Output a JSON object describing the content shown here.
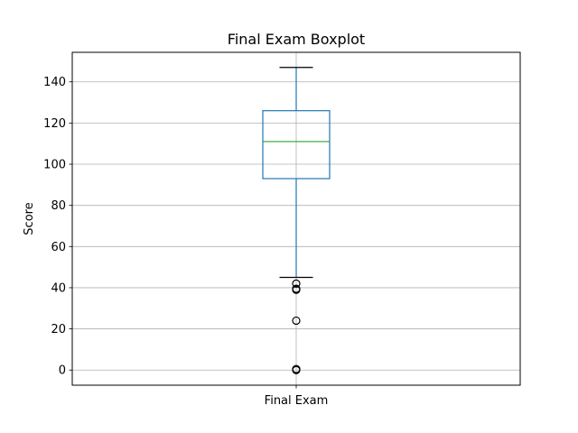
{
  "chart_data": {
    "type": "boxplot",
    "title": "Final Exam Boxplot",
    "xlabel": "",
    "ylabel": "Score",
    "categories": [
      "Final Exam"
    ],
    "ylim": [
      -7.35,
      154.35
    ],
    "yticks": [
      0,
      20,
      40,
      60,
      80,
      100,
      120,
      140
    ],
    "grid": true,
    "boxes": [
      {
        "name": "Final Exam",
        "whisker_low": 45,
        "q1": 93,
        "median": 111,
        "q3": 126,
        "whisker_high": 147,
        "outliers": [
          42,
          39.5,
          39,
          24,
          0.5,
          0
        ]
      }
    ],
    "colors": {
      "box": "#1f77b4",
      "median": "#2ca02c",
      "whisker": "#1f77b4",
      "cap": "#000000",
      "outlier": "#000000",
      "grid": "#b0b0b0"
    }
  }
}
